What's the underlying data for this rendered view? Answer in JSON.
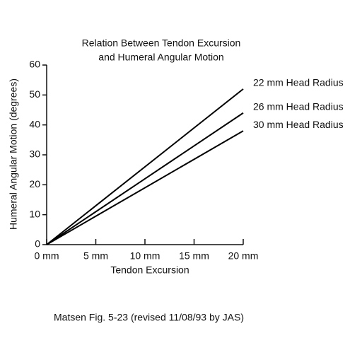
{
  "chart_data": {
    "type": "line",
    "title": [
      "Relation Between Tendon Excursion",
      "and Humeral Angular Motion"
    ],
    "xlabel": "Tendon Excursion",
    "ylabel": "Humeral Angular Motion (degrees)",
    "note": "Matsen Fig. 5-23 (revised 11/08/93 by JAS)",
    "x": [
      0,
      20
    ],
    "series": [
      {
        "name": "22 mm Head Radius",
        "color": "#000000",
        "values": [
          0,
          52
        ]
      },
      {
        "name": "26 mm Head Radius",
        "color": "#000000",
        "values": [
          0,
          44
        ]
      },
      {
        "name": "30 mm Head Radius",
        "color": "#000000",
        "values": [
          0,
          38
        ]
      }
    ],
    "xlim": [
      0,
      20
    ],
    "xticks": [
      {
        "value": 0,
        "label": "0 mm"
      },
      {
        "value": 5,
        "label": "5 mm"
      },
      {
        "value": 10,
        "label": "10 mm"
      },
      {
        "value": 15,
        "label": "15 mm"
      },
      {
        "value": 20,
        "label": "20 mm"
      }
    ],
    "ylim": [
      0,
      60
    ],
    "yticks": [
      0,
      10,
      20,
      30,
      40,
      50,
      60
    ],
    "grid": false
  }
}
